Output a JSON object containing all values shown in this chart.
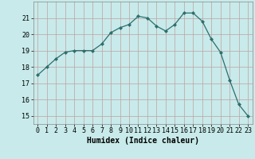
{
  "x": [
    0,
    1,
    2,
    3,
    4,
    5,
    6,
    7,
    8,
    9,
    10,
    11,
    12,
    13,
    14,
    15,
    16,
    17,
    18,
    19,
    20,
    21,
    22,
    23
  ],
  "y": [
    17.5,
    18.0,
    18.5,
    18.9,
    19.0,
    19.0,
    19.0,
    19.4,
    20.1,
    20.4,
    20.6,
    21.1,
    21.0,
    20.5,
    20.2,
    20.6,
    21.3,
    21.3,
    20.8,
    19.7,
    18.9,
    17.2,
    15.7,
    15.0
  ],
  "line_color": "#2d6e6e",
  "marker": "D",
  "marker_size": 2,
  "bg_color": "#c8eaea",
  "grid_color": "#c0a0a0",
  "xlabel": "Humidex (Indice chaleur)",
  "xlabel_fontsize": 7,
  "tick_fontsize": 6,
  "ylim": [
    14.5,
    22.0
  ],
  "xlim": [
    -0.5,
    23.5
  ],
  "yticks": [
    15,
    16,
    17,
    18,
    19,
    20,
    21
  ],
  "xticks": [
    0,
    1,
    2,
    3,
    4,
    5,
    6,
    7,
    8,
    9,
    10,
    11,
    12,
    13,
    14,
    15,
    16,
    17,
    18,
    19,
    20,
    21,
    22,
    23
  ]
}
